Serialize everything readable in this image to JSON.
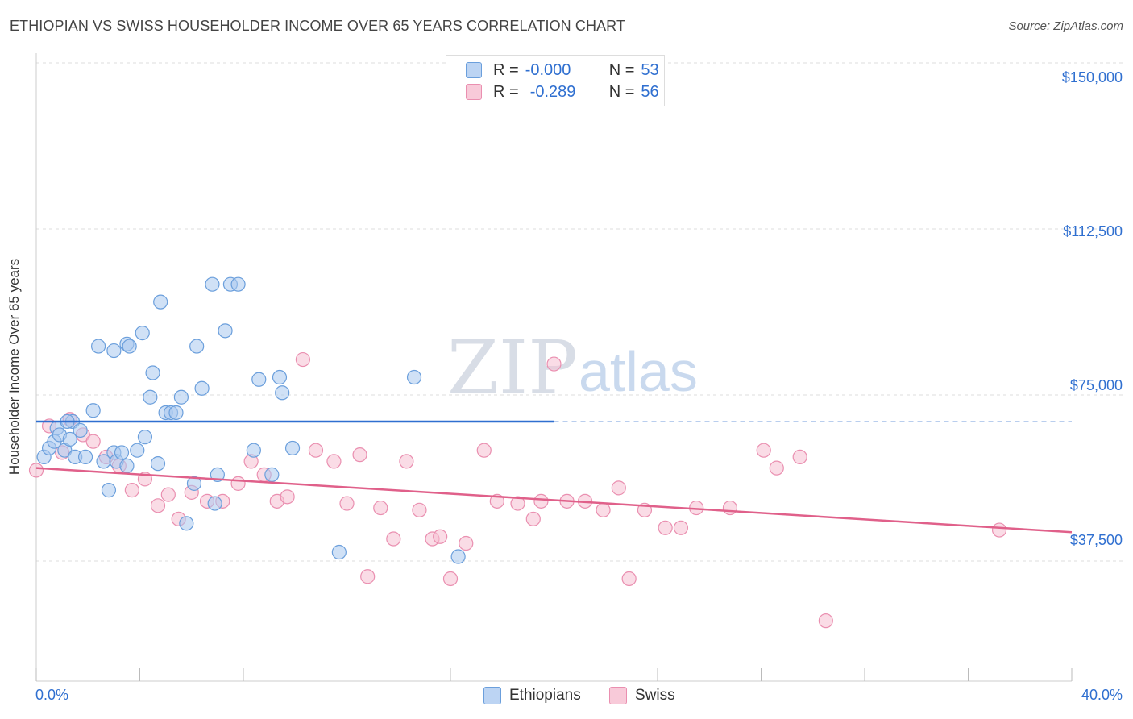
{
  "header": {
    "title": "ETHIOPIAN VS SWISS HOUSEHOLDER INCOME OVER 65 YEARS CORRELATION CHART",
    "source": "Source: ZipAtlas.com"
  },
  "legend_top": {
    "rows": [
      {
        "r_label": "R =",
        "r_value": "-0.000",
        "n_label": "N =",
        "n_value": "53"
      },
      {
        "r_label": "R =",
        "r_value": "-0.289",
        "n_label": "N =",
        "n_value": "56"
      }
    ]
  },
  "legend_bottom": {
    "items": [
      "Ethiopians",
      "Swiss"
    ]
  },
  "colors": {
    "ethiopians_fill": "#a9c8ef",
    "ethiopians_stroke": "#6b9fdc",
    "ethiopians_line": "#2f6fd0",
    "swiss_fill": "#f6bfd1",
    "swiss_stroke": "#ea8fb0",
    "swiss_line": "#e0608a",
    "tick_label": "#2f6fd0",
    "grid": "#dddddd"
  },
  "watermark": {
    "zip": "ZIP",
    "atlas": "atlas"
  },
  "chart_data": {
    "type": "scatter",
    "title": "ETHIOPIAN VS SWISS HOUSEHOLDER INCOME OVER 65 YEARS CORRELATION CHART",
    "xlabel": "",
    "ylabel": "Householder Income Over 65 years",
    "xlim": [
      0,
      40
    ],
    "ylim": [
      0,
      155000
    ],
    "x_tick_labels": [
      "0.0%",
      "40.0%"
    ],
    "y_ticks": [
      37500,
      75000,
      112500,
      150000
    ],
    "y_tick_labels": [
      "$37,500",
      "$75,000",
      "$112,500",
      "$150,000"
    ],
    "grid": "horizontal dashed",
    "legend_position": "top-center",
    "series": [
      {
        "name": "Ethiopians",
        "trend": {
          "x": [
            0,
            20
          ],
          "y": [
            69000,
            69000
          ],
          "extended_dashed_to": 40
        },
        "points": [
          [
            0.3,
            61000
          ],
          [
            0.5,
            63000
          ],
          [
            0.7,
            64500
          ],
          [
            0.8,
            67500
          ],
          [
            0.9,
            66000
          ],
          [
            1.1,
            62500
          ],
          [
            1.3,
            65000
          ],
          [
            1.4,
            69000
          ],
          [
            1.5,
            61000
          ],
          [
            1.7,
            67000
          ],
          [
            1.9,
            61000
          ],
          [
            2.2,
            71500
          ],
          [
            2.4,
            86000
          ],
          [
            2.6,
            60000
          ],
          [
            2.8,
            53500
          ],
          [
            3.0,
            62000
          ],
          [
            3.0,
            85000
          ],
          [
            3.1,
            60000
          ],
          [
            3.3,
            62000
          ],
          [
            3.5,
            59000
          ],
          [
            3.5,
            86500
          ],
          [
            3.6,
            86000
          ],
          [
            3.9,
            62500
          ],
          [
            4.1,
            89000
          ],
          [
            4.2,
            65500
          ],
          [
            4.4,
            74500
          ],
          [
            4.5,
            80000
          ],
          [
            4.7,
            59500
          ],
          [
            4.8,
            96000
          ],
          [
            5.0,
            71000
          ],
          [
            5.2,
            71000
          ],
          [
            5.4,
            71000
          ],
          [
            5.6,
            74500
          ],
          [
            5.8,
            46000
          ],
          [
            6.1,
            55000
          ],
          [
            6.2,
            86000
          ],
          [
            6.4,
            76500
          ],
          [
            6.8,
            100000
          ],
          [
            6.9,
            50500
          ],
          [
            7.0,
            57000
          ],
          [
            7.3,
            89500
          ],
          [
            7.5,
            100000
          ],
          [
            7.8,
            100000
          ],
          [
            8.4,
            62500
          ],
          [
            8.6,
            78500
          ],
          [
            9.1,
            57000
          ],
          [
            9.4,
            79000
          ],
          [
            9.5,
            75500
          ],
          [
            9.9,
            63000
          ],
          [
            11.7,
            39500
          ],
          [
            14.6,
            79000
          ],
          [
            16.3,
            38500
          ],
          [
            1.2,
            69000
          ]
        ]
      },
      {
        "name": "Swiss",
        "trend": {
          "x": [
            0,
            40
          ],
          "y": [
            58500,
            44000
          ]
        },
        "points": [
          [
            0.0,
            58000
          ],
          [
            0.5,
            68000
          ],
          [
            1.0,
            62000
          ],
          [
            1.3,
            69500
          ],
          [
            1.8,
            66000
          ],
          [
            2.2,
            64500
          ],
          [
            2.7,
            61000
          ],
          [
            3.2,
            59000
          ],
          [
            3.7,
            53500
          ],
          [
            4.2,
            56000
          ],
          [
            4.7,
            50000
          ],
          [
            5.1,
            52500
          ],
          [
            5.5,
            47000
          ],
          [
            6.0,
            53000
          ],
          [
            6.6,
            51000
          ],
          [
            7.2,
            51000
          ],
          [
            7.8,
            55000
          ],
          [
            8.3,
            60000
          ],
          [
            8.8,
            57000
          ],
          [
            9.3,
            51000
          ],
          [
            9.7,
            52000
          ],
          [
            10.3,
            83000
          ],
          [
            10.8,
            62500
          ],
          [
            11.5,
            60000
          ],
          [
            12.0,
            50500
          ],
          [
            12.5,
            61500
          ],
          [
            12.8,
            34000
          ],
          [
            13.3,
            49500
          ],
          [
            13.8,
            42500
          ],
          [
            14.3,
            60000
          ],
          [
            14.8,
            49000
          ],
          [
            15.3,
            42500
          ],
          [
            15.6,
            43000
          ],
          [
            16.0,
            33500
          ],
          [
            16.6,
            41500
          ],
          [
            17.3,
            62500
          ],
          [
            17.8,
            51000
          ],
          [
            18.6,
            50500
          ],
          [
            19.2,
            47000
          ],
          [
            19.5,
            51000
          ],
          [
            20.0,
            82000
          ],
          [
            20.5,
            51000
          ],
          [
            21.2,
            51000
          ],
          [
            21.9,
            49000
          ],
          [
            22.5,
            54000
          ],
          [
            22.9,
            33500
          ],
          [
            23.5,
            49000
          ],
          [
            24.3,
            45000
          ],
          [
            24.9,
            45000
          ],
          [
            25.5,
            49500
          ],
          [
            26.8,
            49500
          ],
          [
            28.1,
            62500
          ],
          [
            28.6,
            58500
          ],
          [
            29.5,
            61000
          ],
          [
            30.5,
            24000
          ],
          [
            37.2,
            44500
          ]
        ]
      }
    ]
  }
}
